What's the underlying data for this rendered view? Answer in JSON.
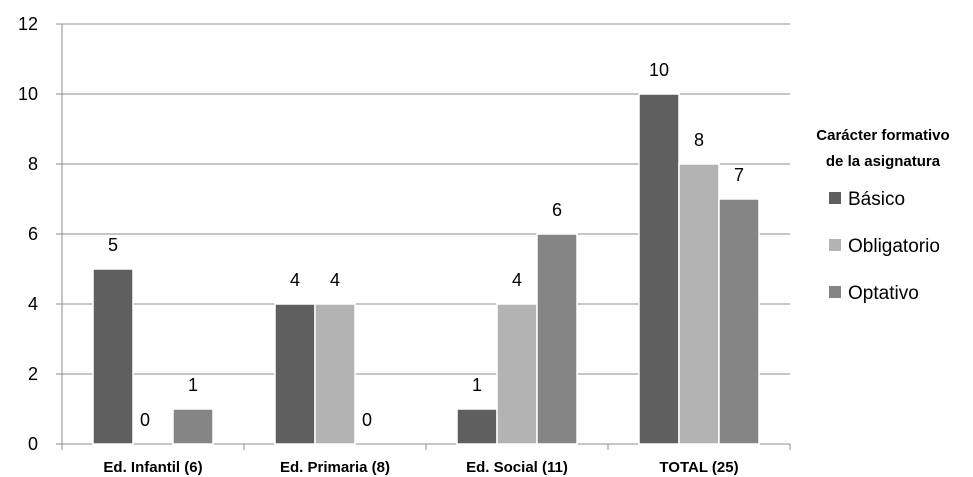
{
  "chart_data": {
    "type": "bar",
    "categories": [
      "Ed. Infantil (6)",
      "Ed. Primaria (8)",
      "Ed. Social  (11)",
      "TOTAL (25)"
    ],
    "series": [
      {
        "name": "Básico",
        "values": [
          5,
          4,
          1,
          10
        ],
        "color": "#5f5f5f"
      },
      {
        "name": "Obligatorio",
        "values": [
          0,
          4,
          4,
          8
        ],
        "color": "#b3b3b3"
      },
      {
        "name": "Optativo",
        "values": [
          1,
          0,
          6,
          7
        ],
        "color": "#858585"
      }
    ],
    "ylim": [
      0,
      12
    ],
    "yticks": [
      0,
      2,
      4,
      6,
      8,
      10,
      12
    ],
    "grid": true,
    "legend": {
      "title_line1": "Carácter formativo",
      "title_line2": "de la asignatura",
      "position": "right"
    },
    "data_labels": true
  }
}
